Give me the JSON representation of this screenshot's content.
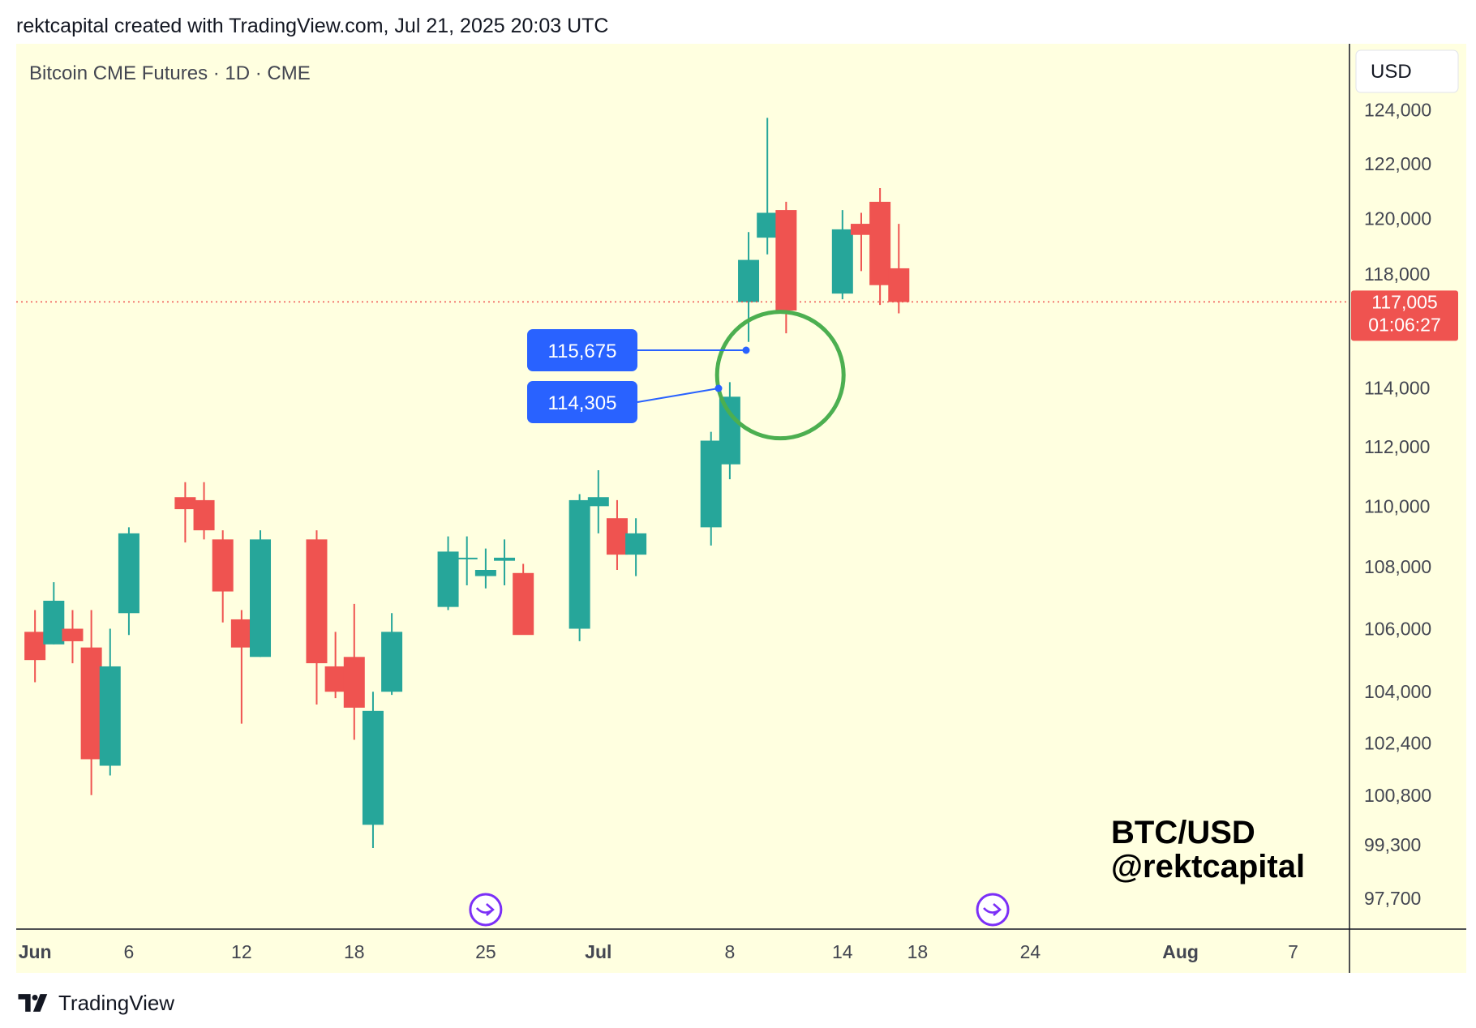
{
  "header": {
    "attribution": "rektcapital created with TradingView.com, Jul 21, 2025 20:03 UTC"
  },
  "footer": {
    "brand": "TradingView"
  },
  "colors": {
    "background": "#ffffe0",
    "up": "#26a69a",
    "down": "#ef5350",
    "callout": "#2962ff",
    "circle": "#4caf50",
    "axis": "#131722",
    "arrow": "#7b2ff7"
  },
  "chart_data": {
    "type": "candlestick",
    "symbol_title": "Bitcoin CME Futures · 1D · CME",
    "currency": "USD",
    "watermark": [
      "BTC/USD",
      "@rektcapital"
    ],
    "y_scale": "log",
    "ylim": [
      96800,
      126500
    ],
    "y_ticks": [
      {
        "value": 124000,
        "label": "124,000"
      },
      {
        "value": 122000,
        "label": "122,000"
      },
      {
        "value": 120000,
        "label": "120,000"
      },
      {
        "value": 118000,
        "label": "118,000"
      },
      {
        "value": 114000,
        "label": "114,000"
      },
      {
        "value": 112000,
        "label": "112,000"
      },
      {
        "value": 110000,
        "label": "110,000"
      },
      {
        "value": 108000,
        "label": "108,000"
      },
      {
        "value": 106000,
        "label": "106,000"
      },
      {
        "value": 104000,
        "label": "104,000"
      },
      {
        "value": 102400,
        "label": "102,400"
      },
      {
        "value": 100800,
        "label": "100,800"
      },
      {
        "value": 99300,
        "label": "99,300"
      },
      {
        "value": 97700,
        "label": "97,700"
      }
    ],
    "x_range": [
      "2025-05-31",
      "2025-08-10"
    ],
    "x_ticks": [
      {
        "date": "2025-06-01",
        "label": "Jun",
        "bold": true
      },
      {
        "date": "2025-06-06",
        "label": "6",
        "bold": false
      },
      {
        "date": "2025-06-12",
        "label": "12",
        "bold": false
      },
      {
        "date": "2025-06-18",
        "label": "18",
        "bold": false
      },
      {
        "date": "2025-06-25",
        "label": "25",
        "bold": false
      },
      {
        "date": "2025-07-01",
        "label": "Jul",
        "bold": true
      },
      {
        "date": "2025-07-08",
        "label": "8",
        "bold": false
      },
      {
        "date": "2025-07-14",
        "label": "14",
        "bold": false
      },
      {
        "date": "2025-07-18",
        "label": "18",
        "bold": false
      },
      {
        "date": "2025-07-24",
        "label": "24",
        "bold": false
      },
      {
        "date": "2025-08-01",
        "label": "Aug",
        "bold": true
      },
      {
        "date": "2025-08-07",
        "label": "7",
        "bold": false
      }
    ],
    "candles": [
      {
        "date": "2025-06-01",
        "open": 105900,
        "high": 106600,
        "low": 104300,
        "close": 105000
      },
      {
        "date": "2025-06-02",
        "open": 105500,
        "high": 107500,
        "low": 105500,
        "close": 106900
      },
      {
        "date": "2025-06-03",
        "open": 106000,
        "high": 106600,
        "low": 104900,
        "close": 105600
      },
      {
        "date": "2025-06-04",
        "open": 105400,
        "high": 106600,
        "low": 100800,
        "close": 101900
      },
      {
        "date": "2025-06-05",
        "open": 101700,
        "high": 106000,
        "low": 101400,
        "close": 104800
      },
      {
        "date": "2025-06-06",
        "open": 106500,
        "high": 109300,
        "low": 105800,
        "close": 109100
      },
      {
        "date": "2025-06-09",
        "open": 110300,
        "high": 110800,
        "low": 108800,
        "close": 109900
      },
      {
        "date": "2025-06-10",
        "open": 110200,
        "high": 110800,
        "low": 108900,
        "close": 109200
      },
      {
        "date": "2025-06-11",
        "open": 108900,
        "high": 109200,
        "low": 106200,
        "close": 107200
      },
      {
        "date": "2025-06-12",
        "open": 106300,
        "high": 106600,
        "low": 103000,
        "close": 105400
      },
      {
        "date": "2025-06-13",
        "open": 105100,
        "high": 109200,
        "low": 105100,
        "close": 108900
      },
      {
        "date": "2025-06-16",
        "open": 108900,
        "high": 109200,
        "low": 103600,
        "close": 104900
      },
      {
        "date": "2025-06-17",
        "open": 104800,
        "high": 105900,
        "low": 103800,
        "close": 104000
      },
      {
        "date": "2025-06-18",
        "open": 105100,
        "high": 106800,
        "low": 102500,
        "close": 103500
      },
      {
        "date": "2025-06-19",
        "open": 99900,
        "high": 104000,
        "low": 99200,
        "close": 103400
      },
      {
        "date": "2025-06-20",
        "open": 104000,
        "high": 106500,
        "low": 103900,
        "close": 105900
      },
      {
        "date": "2025-06-23",
        "open": 106700,
        "high": 109000,
        "low": 106600,
        "close": 108500
      },
      {
        "date": "2025-06-24",
        "open": 108300,
        "high": 109000,
        "low": 107400,
        "close": 108300
      },
      {
        "date": "2025-06-25",
        "open": 107700,
        "high": 108600,
        "low": 107300,
        "close": 107900
      },
      {
        "date": "2025-06-26",
        "open": 108200,
        "high": 108900,
        "low": 107400,
        "close": 108300
      },
      {
        "date": "2025-06-27",
        "open": 107800,
        "high": 108100,
        "low": 105900,
        "close": 105800
      },
      {
        "date": "2025-06-30",
        "open": 106000,
        "high": 110400,
        "low": 105600,
        "close": 110200
      },
      {
        "date": "2025-07-01",
        "open": 110000,
        "high": 111200,
        "low": 109100,
        "close": 110300
      },
      {
        "date": "2025-07-02",
        "open": 109600,
        "high": 110200,
        "low": 107900,
        "close": 108400
      },
      {
        "date": "2025-07-03",
        "open": 108400,
        "high": 109600,
        "low": 107700,
        "close": 109100
      },
      {
        "date": "2025-07-07",
        "open": 109300,
        "high": 112500,
        "low": 108700,
        "close": 112200
      },
      {
        "date": "2025-07-08",
        "open": 111400,
        "high": 114200,
        "low": 110900,
        "close": 113700
      },
      {
        "date": "2025-07-09",
        "open": 117000,
        "high": 119500,
        "low": 115600,
        "close": 118500
      },
      {
        "date": "2025-07-10",
        "open": 119300,
        "high": 123700,
        "low": 118700,
        "close": 120200
      },
      {
        "date": "2025-07-11",
        "open": 120300,
        "high": 120600,
        "low": 115900,
        "close": 116700
      },
      {
        "date": "2025-07-14",
        "open": 117300,
        "high": 120300,
        "low": 117100,
        "close": 119600
      },
      {
        "date": "2025-07-15",
        "open": 119800,
        "high": 120200,
        "low": 118100,
        "close": 119400
      },
      {
        "date": "2025-07-16",
        "open": 120600,
        "high": 121100,
        "low": 116900,
        "close": 117600
      },
      {
        "date": "2025-07-17",
        "open": 118200,
        "high": 119800,
        "low": 116600,
        "close": 117000
      }
    ],
    "current_price": {
      "value": 117005,
      "label": "117,005",
      "countdown": "01:06:27"
    },
    "callouts": [
      {
        "label": "115,675",
        "value": 115675,
        "date": "2025-07-10"
      },
      {
        "label": "114,305",
        "value": 114305,
        "date": "2025-07-09"
      }
    ],
    "highlight_circle": {
      "date": "2025-07-10",
      "value": 115800
    },
    "event_markers": [
      {
        "date": "2025-06-25",
        "icon": "jump-arrow-icon"
      },
      {
        "date": "2025-07-22",
        "icon": "jump-arrow-icon"
      }
    ]
  }
}
